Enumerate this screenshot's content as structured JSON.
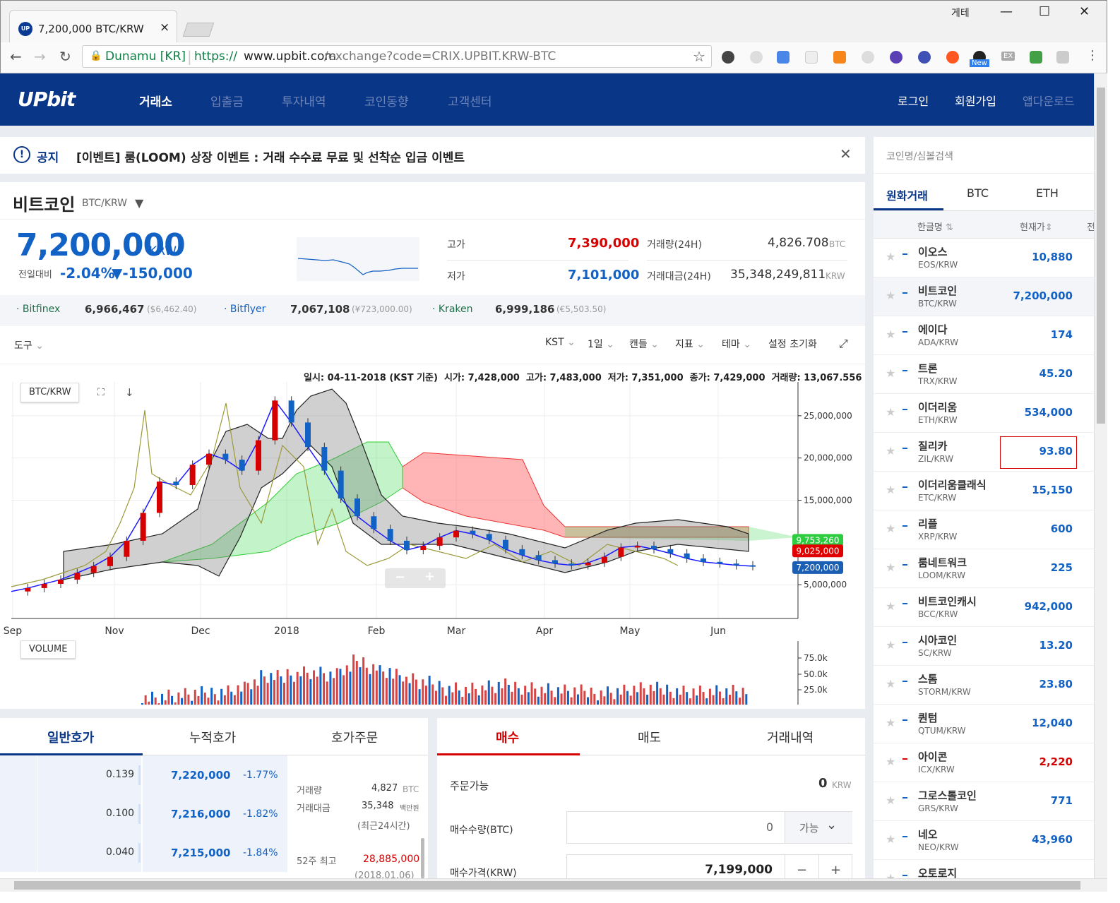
{
  "browser": {
    "tab_title": "7,200,000 BTC/KRW",
    "tab_favicon": "UP",
    "window_label": "게테",
    "minimize": "—",
    "maximize": "☐",
    "close": "✕",
    "tab_close": "×",
    "site_identity": "Dunamu [KR]",
    "url_scheme": "https://",
    "url_host": "www.upbit.com",
    "url_path": "/exchange?code=CRIX.UPBIT.KRW-BTC",
    "new_badge": "New",
    "ex_label": "EX"
  },
  "header": {
    "logo": "UPbit",
    "nav": [
      "거래소",
      "입출금",
      "투자내역",
      "코인동향",
      "고객센터"
    ],
    "login": "로그인",
    "signup": "회원가입",
    "app_download": "앱다운로드"
  },
  "notice": {
    "label": "공지",
    "text": "[이벤트] 룸(LOOM) 상장 이벤트 : 거래 수수료 무료 및 선착순 입금 이벤트",
    "close": "✕"
  },
  "ticker": {
    "name": "비트코인",
    "pair": "BTC/KRW",
    "price": "7,200,000",
    "currency": "KRW",
    "change_label": "전일대비",
    "change_pct": "-2.04%",
    "change_amt": "▼-150,000",
    "high_label": "고가",
    "high": "7,390,000",
    "low_label": "저가",
    "low": "7,101,000",
    "vol_label": "거래량(24H)",
    "vol": "4,826.708",
    "vol_unit": "BTC",
    "amt_label": "거래대금(24H)",
    "amt": "35,348,249,811",
    "amt_unit": "KRW"
  },
  "exchanges": [
    {
      "name": "· Bitfinex",
      "krw": "6,966,467",
      "fx": "($6,462.40)"
    },
    {
      "name": "· Bitflyer",
      "krw": "7,067,108",
      "fx": "(¥723,000.00)"
    },
    {
      "name": "· Kraken",
      "krw": "6,999,186",
      "fx": "(€5,503.50)"
    }
  ],
  "chart_toolbar": {
    "tools": "도구",
    "tz": "KST",
    "interval": "1일",
    "candle": "캔들",
    "indicator": "지표",
    "theme": "테마",
    "reset": "설정 초기화"
  },
  "chart_info": {
    "text": "일시: 04-11-2018 (KST 기준)  시가: 7,428,000  고가: 7,483,000  저가: 7,351,000  종가: 7,429,000  거래량: 13,067.556"
  },
  "chart_legend": {
    "pair": "BTC/KRW",
    "volume": "VOLUME",
    "zoom_minus": "−",
    "zoom_plus": "+"
  },
  "chart_data": {
    "type": "line",
    "x": [
      "Sep",
      "Nov",
      "Dec",
      "2018",
      "Feb",
      "Mar",
      "Apr",
      "May",
      "Jun"
    ],
    "price_ticks": [
      "25,000,000",
      "20,000,000",
      "15,000,000",
      "5,000,000"
    ],
    "volume_ticks": [
      "75.0k",
      "50.0k",
      "25.0k"
    ],
    "price_series": [
      4.2,
      4.6,
      5.1,
      5.6,
      6.4,
      7.2,
      8.3,
      10.2,
      13.5,
      17.2,
      16.8,
      19.2,
      20.5,
      19.8,
      18.5,
      22.1,
      26.8,
      24.2,
      21.3,
      18.5,
      15.2,
      13.1,
      11.6,
      10.2,
      9.1,
      9.6,
      10.6,
      11.4,
      11.0,
      10.3,
      9.2,
      8.5,
      7.9,
      7.5,
      7.3,
      7.6,
      8.3,
      9.4,
      9.6,
      9.2,
      8.7,
      8.1,
      7.7,
      7.5,
      7.3,
      7.2
    ],
    "labels": [
      "9,753,260",
      "9,025,000",
      "7,200,000"
    ]
  },
  "orderbook": {
    "tabs": [
      "일반호가",
      "누적호가",
      "호가주문"
    ],
    "rows": [
      {
        "qty": "0.139",
        "price": "7,220,000",
        "pct": "-1.77%"
      },
      {
        "qty": "0.100",
        "price": "7,216,000",
        "pct": "-1.82%"
      },
      {
        "qty": "0.040",
        "price": "7,215,000",
        "pct": "-1.84%"
      }
    ],
    "info": {
      "vol_label": "거래량",
      "vol": "4,827",
      "vol_unit": "BTC",
      "amt_label": "거래대금",
      "amt": "35,348",
      "amt_unit": "백만원",
      "period": "(최근24시간)",
      "high52_label": "52주 최고",
      "high52": "28,885,000",
      "high52_date": "(2018.01.06)"
    }
  },
  "order": {
    "tabs": [
      "매수",
      "매도",
      "거래내역"
    ],
    "avail_label": "주문가능",
    "avail": "0",
    "avail_unit": "KRW",
    "qty_label": "매수수량(BTC)",
    "qty": "0",
    "qty_btn": "가능",
    "price_label": "매수가격(KRW)",
    "price": "7,199,000",
    "minus": "−",
    "plus": "+"
  },
  "market": {
    "search_placeholder": "코인명/심볼검색",
    "tabs": [
      "원화거래",
      "BTC",
      "ETH"
    ],
    "col_name": "한글명",
    "col_price": "현재가",
    "col_change": "전",
    "coins": [
      {
        "name": "이오스",
        "sym": "EOS/KRW",
        "price": "10,880"
      },
      {
        "name": "비트코인",
        "sym": "BTC/KRW",
        "price": "7,200,000"
      },
      {
        "name": "에이다",
        "sym": "ADA/KRW",
        "price": "174"
      },
      {
        "name": "트론",
        "sym": "TRX/KRW",
        "price": "45.20"
      },
      {
        "name": "이더리움",
        "sym": "ETH/KRW",
        "price": "534,000"
      },
      {
        "name": "질리카",
        "sym": "ZIL/KRW",
        "price": "93.80"
      },
      {
        "name": "이더리움클래식",
        "sym": "ETC/KRW",
        "price": "15,150"
      },
      {
        "name": "리플",
        "sym": "XRP/KRW",
        "price": "600"
      },
      {
        "name": "룸네트워크",
        "sym": "LOOM/KRW",
        "price": "225"
      },
      {
        "name": "비트코인캐시",
        "sym": "BCC/KRW",
        "price": "942,000"
      },
      {
        "name": "시아코인",
        "sym": "SC/KRW",
        "price": "13.20"
      },
      {
        "name": "스톰",
        "sym": "STORM/KRW",
        "price": "23.80"
      },
      {
        "name": "퀀텀",
        "sym": "QTUM/KRW",
        "price": "12,040"
      },
      {
        "name": "아이콘",
        "sym": "ICX/KRW",
        "price": "2,220"
      },
      {
        "name": "그로스톨코인",
        "sym": "GRS/KRW",
        "price": "771"
      },
      {
        "name": "네오",
        "sym": "NEO/KRW",
        "price": "43,960"
      },
      {
        "name": "오토로지",
        "sym": "",
        "price": ""
      }
    ]
  },
  "colors": {
    "brand": "#093687",
    "up": "#d60000",
    "down": "#1261c4"
  }
}
